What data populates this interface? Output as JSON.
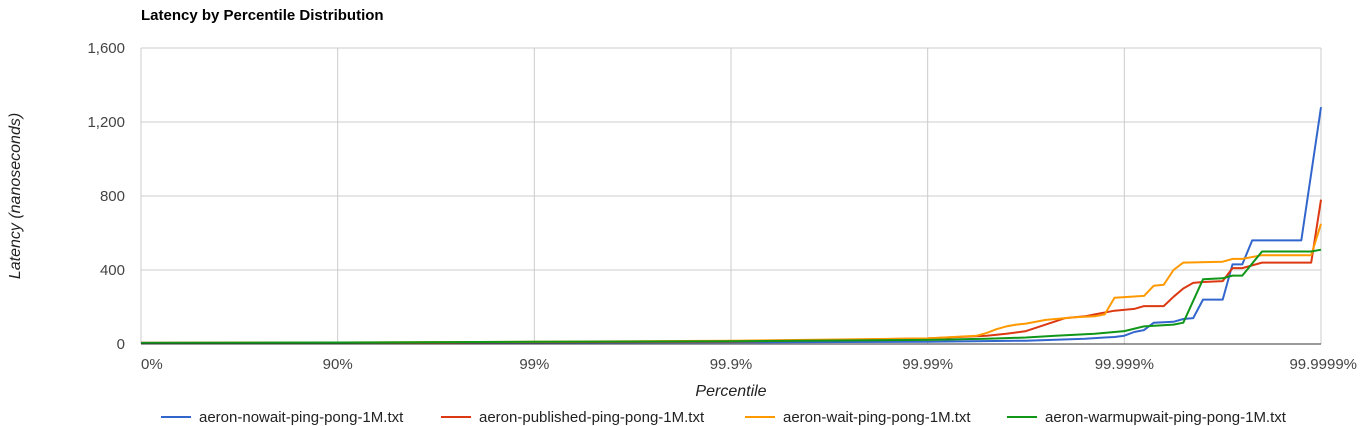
{
  "chart_data": {
    "type": "line",
    "title": "Latency by Percentile Distribution",
    "xlabel": "Percentile",
    "ylabel": "Latency (nanoseconds)",
    "x_scale": "log-inverse-percentile",
    "x_ticks": [
      "0%",
      "90%",
      "99%",
      "99.9%",
      "99.99%",
      "99.999%",
      "99.9999%"
    ],
    "x_range_decades": [
      0,
      6
    ],
    "y_ticks": [
      "0",
      "400",
      "800",
      "1,200",
      "1,600"
    ],
    "ylim": [
      0,
      1600
    ],
    "grid": true,
    "legend_position": "bottom",
    "series": [
      {
        "name": "aeron-nowait-ping-pong-1M.txt",
        "color": "#3366cc",
        "points": [
          [
            0,
            6
          ],
          [
            1,
            6
          ],
          [
            2,
            8
          ],
          [
            3,
            9
          ],
          [
            4,
            12
          ],
          [
            4.5,
            18
          ],
          [
            4.8,
            28
          ],
          [
            4.9,
            35
          ],
          [
            4.95,
            38
          ],
          [
            5.0,
            45
          ],
          [
            5.05,
            65
          ],
          [
            5.1,
            75
          ],
          [
            5.15,
            115
          ],
          [
            5.25,
            120
          ],
          [
            5.3,
            135
          ],
          [
            5.35,
            140
          ],
          [
            5.4,
            240
          ],
          [
            5.5,
            240
          ],
          [
            5.55,
            430
          ],
          [
            5.6,
            430
          ],
          [
            5.65,
            560
          ],
          [
            5.9,
            560
          ],
          [
            6.0,
            1280
          ]
        ]
      },
      {
        "name": "aeron-published-ping-pong-1M.txt",
        "color": "#dc3912",
        "points": [
          [
            0,
            6
          ],
          [
            1,
            7
          ],
          [
            2,
            10
          ],
          [
            3,
            13
          ],
          [
            4,
            30
          ],
          [
            4.3,
            45
          ],
          [
            4.4,
            55
          ],
          [
            4.5,
            70
          ],
          [
            4.6,
            105
          ],
          [
            4.7,
            140
          ],
          [
            4.8,
            150
          ],
          [
            4.85,
            160
          ],
          [
            4.95,
            180
          ],
          [
            5.05,
            190
          ],
          [
            5.1,
            205
          ],
          [
            5.2,
            205
          ],
          [
            5.25,
            255
          ],
          [
            5.3,
            300
          ],
          [
            5.35,
            330
          ],
          [
            5.4,
            335
          ],
          [
            5.5,
            340
          ],
          [
            5.55,
            410
          ],
          [
            5.6,
            410
          ],
          [
            5.7,
            440
          ],
          [
            5.95,
            440
          ],
          [
            6.0,
            780
          ]
        ]
      },
      {
        "name": "aeron-wait-ping-pong-1M.txt",
        "color": "#ff9900",
        "points": [
          [
            0,
            6
          ],
          [
            1,
            8
          ],
          [
            2,
            12
          ],
          [
            3,
            18
          ],
          [
            4,
            30
          ],
          [
            4.25,
            45
          ],
          [
            4.3,
            60
          ],
          [
            4.35,
            80
          ],
          [
            4.4,
            95
          ],
          [
            4.45,
            105
          ],
          [
            4.5,
            110
          ],
          [
            4.6,
            130
          ],
          [
            4.75,
            145
          ],
          [
            4.85,
            150
          ],
          [
            4.9,
            160
          ],
          [
            4.95,
            250
          ],
          [
            5.1,
            260
          ],
          [
            5.15,
            315
          ],
          [
            5.2,
            320
          ],
          [
            5.25,
            400
          ],
          [
            5.3,
            440
          ],
          [
            5.5,
            445
          ],
          [
            5.55,
            460
          ],
          [
            5.6,
            460
          ],
          [
            5.7,
            480
          ],
          [
            5.95,
            480
          ],
          [
            6.0,
            650
          ]
        ]
      },
      {
        "name": "aeron-warmupwait-ping-pong-1M.txt",
        "color": "#109618",
        "points": [
          [
            0,
            6
          ],
          [
            1,
            8
          ],
          [
            2,
            12
          ],
          [
            3,
            15
          ],
          [
            4,
            22
          ],
          [
            4.3,
            28
          ],
          [
            4.5,
            35
          ],
          [
            4.65,
            45
          ],
          [
            4.85,
            55
          ],
          [
            5.0,
            70
          ],
          [
            5.1,
            95
          ],
          [
            5.25,
            105
          ],
          [
            5.3,
            115
          ],
          [
            5.4,
            350
          ],
          [
            5.5,
            355
          ],
          [
            5.55,
            370
          ],
          [
            5.6,
            370
          ],
          [
            5.7,
            500
          ],
          [
            5.95,
            500
          ],
          [
            6.0,
            510
          ]
        ]
      }
    ]
  }
}
